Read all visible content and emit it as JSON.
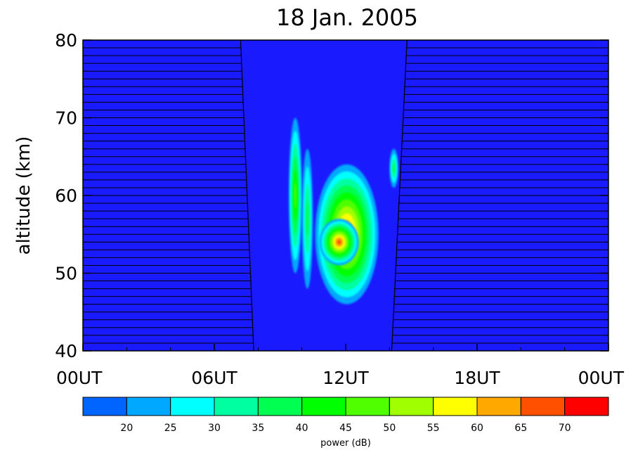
{
  "chart_data": {
    "type": "heatmap",
    "title": "18 Jan. 2005",
    "ylabel": "altitude (km)",
    "xlabel": "",
    "x_ticks": [
      "00UT",
      "06UT",
      "12UT",
      "18UT",
      "00UT"
    ],
    "y_ticks": [
      "40",
      "50",
      "60",
      "70",
      "80"
    ],
    "xlim_hours": [
      0,
      24
    ],
    "ylim_km": [
      40,
      80
    ],
    "night_shading": "horizontal lines every 1 km",
    "daytime_window": {
      "top_hours": [
        7.2,
        14.8
      ],
      "bottom_hours": [
        7.8,
        14.1
      ]
    },
    "colorbar": {
      "label": "power (dB)",
      "min": 15,
      "max": 75,
      "tick_labels": [
        "20",
        "25",
        "30",
        "35",
        "40",
        "45",
        "50",
        "55",
        "60",
        "65",
        "70"
      ],
      "colors": [
        "#0064ff",
        "#00a8ff",
        "#00ffff",
        "#00ffa0",
        "#00ff50",
        "#00ff00",
        "#50ff00",
        "#a0ff00",
        "#ffff00",
        "#ffa800",
        "#ff5000",
        "#ff0000"
      ]
    },
    "background_color": "#1a1aff",
    "echo_regions": [
      {
        "x": [
          9.4,
          10.0
        ],
        "y": [
          50,
          70
        ],
        "peak_db": 45
      },
      {
        "x": [
          10.0,
          10.5
        ],
        "y": [
          48,
          66
        ],
        "peak_db": 35
      },
      {
        "x": [
          10.6,
          13.5
        ],
        "y": [
          46,
          64
        ],
        "peak_db": 65
      },
      {
        "x": [
          14.0,
          14.4
        ],
        "y": [
          61,
          66
        ],
        "peak_db": 35
      }
    ],
    "strong_echo": {
      "x": [
        10.8,
        12.6
      ],
      "y": [
        51,
        57
      ],
      "peak_db": 66
    }
  }
}
